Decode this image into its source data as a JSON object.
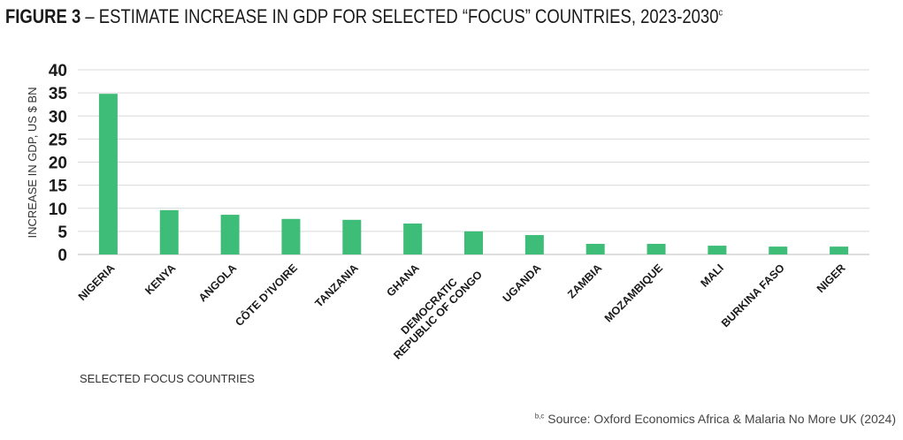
{
  "figure": {
    "label": "FIGURE 3",
    "dash": " – ",
    "title": "ESTIMATE INCREASE IN GDP FOR SELECTED “FOCUS” COUNTRIES, 2023-2030",
    "title_note": "c"
  },
  "source": {
    "note": "b,c",
    "text": "Source: Oxford Economics Africa & Malaria No More UK (2024)"
  },
  "colors": {
    "bar": "#3dbd78",
    "grid": "#d9d9d9",
    "axis": "#bdbdbd"
  },
  "chart_data": {
    "type": "bar",
    "title": "ESTIMATE INCREASE IN GDP FOR SELECTED “FOCUS” COUNTRIES, 2023-2030",
    "xlabel": "SELECTED FOCUS COUNTRIES",
    "ylabel": "INCREASE IN GDP, US $ BN",
    "ylim": [
      0,
      40
    ],
    "yticks": [
      "0",
      "5",
      "10",
      "15",
      "20",
      "25",
      "30",
      "35",
      "40"
    ],
    "grid": true,
    "categories": [
      [
        "NIGERIA"
      ],
      [
        "KENYA"
      ],
      [
        "ANGOLA"
      ],
      [
        "CÔTE D’IVOIRE"
      ],
      [
        "TANZANIA"
      ],
      [
        "GHANA"
      ],
      [
        "DEMOCRATIC",
        "REPUBLIC OF CONGO"
      ],
      [
        "UGANDA"
      ],
      [
        "ZAMBIA"
      ],
      [
        "MOZAMBIQUE"
      ],
      [
        "MALI"
      ],
      [
        "BURKINA FASO"
      ],
      [
        "NIGER"
      ]
    ],
    "values": [
      34.8,
      9.6,
      8.6,
      7.7,
      7.5,
      6.7,
      5.0,
      4.2,
      2.3,
      2.3,
      1.9,
      1.7,
      1.7
    ]
  }
}
